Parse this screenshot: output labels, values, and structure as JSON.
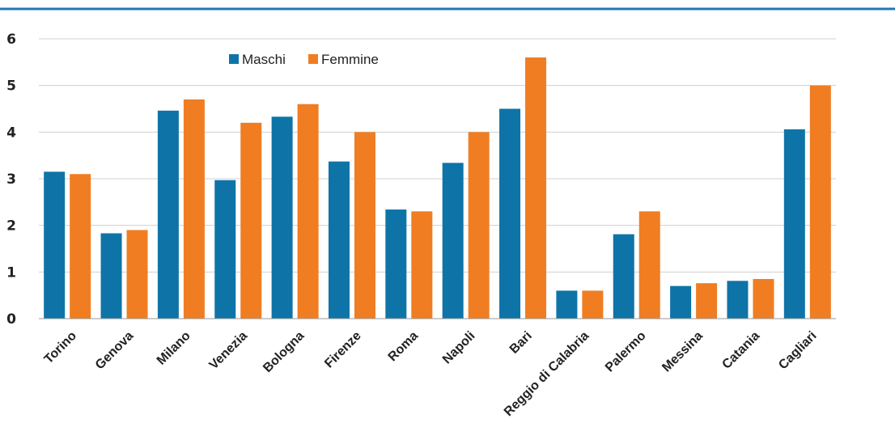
{
  "colors": {
    "top_rule": "#1f77b4",
    "maschi": "#0e74a8",
    "femmine": "#f07d22",
    "grid": "#d0d0d0",
    "axis": "#9a9a9a"
  },
  "chart_data": {
    "type": "bar",
    "title": "",
    "xlabel": "",
    "ylabel": "",
    "ylim": [
      0,
      6
    ],
    "yticks": [
      "0",
      "1",
      "2",
      "3",
      "4",
      "5",
      "6"
    ],
    "grid": true,
    "legend_position": "top-left",
    "categories": [
      "Torino",
      "Genova",
      "Milano",
      "Venezia",
      "Bologna",
      "Firenze",
      "Roma",
      "Napoli",
      "Bari",
      "Reggio di Calabria",
      "Palermo",
      "Messina",
      "Catania",
      "Cagliari"
    ],
    "series": [
      {
        "name": "Maschi",
        "values": [
          3.15,
          1.83,
          4.46,
          2.97,
          4.33,
          3.37,
          2.34,
          3.34,
          4.5,
          0.6,
          1.81,
          0.7,
          0.81,
          4.06
        ]
      },
      {
        "name": "Femmine",
        "values": [
          3.1,
          1.9,
          4.7,
          4.2,
          4.6,
          4.0,
          2.3,
          4.0,
          5.6,
          0.6,
          2.3,
          0.76,
          0.85,
          5.0
        ]
      }
    ]
  }
}
